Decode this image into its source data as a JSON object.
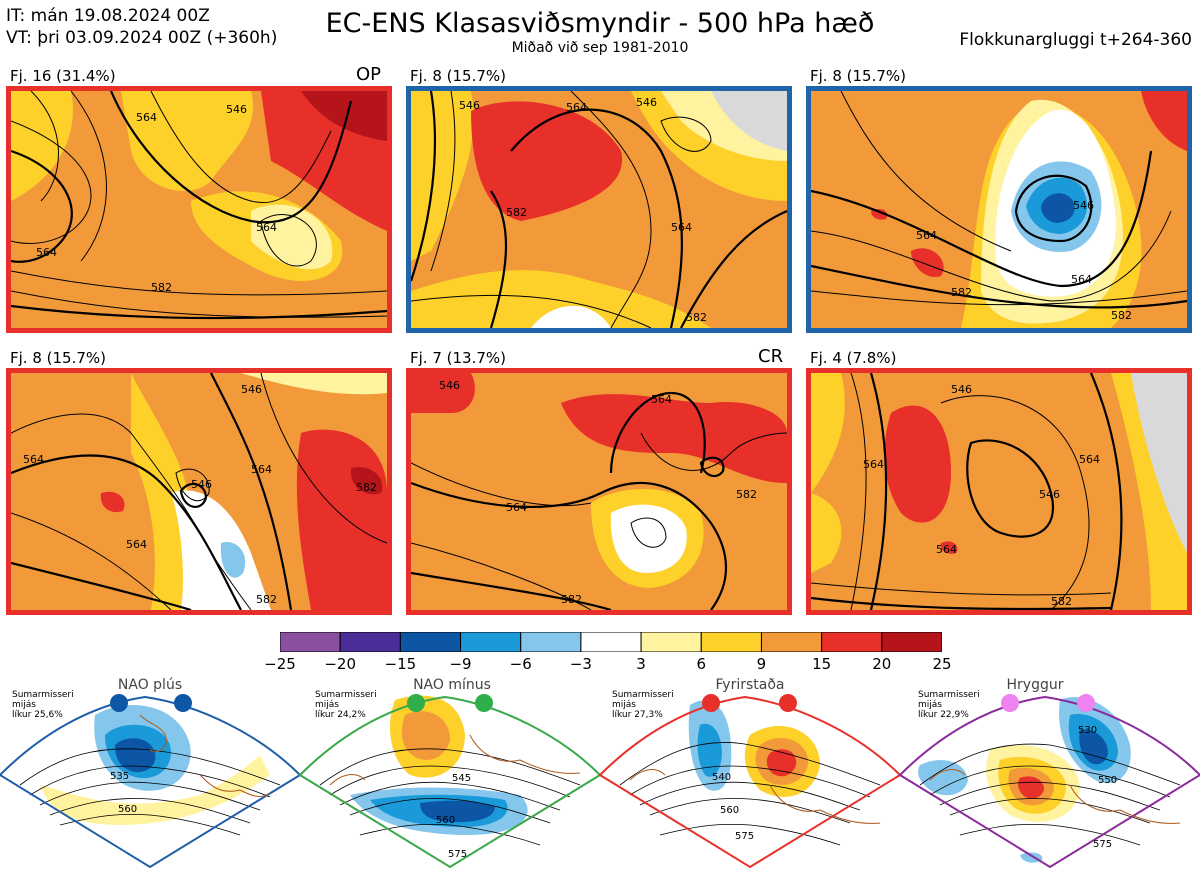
{
  "header": {
    "it": "IT: mán 19.08.2024 00Z",
    "vt": "VT: þri 03.09.2024 00Z  (+360h)",
    "title": "EC-ENS Klasasviðsmyndir - 500 hPa hæð",
    "subtitle": "Miðað við sep 1981-2010",
    "window": "Flokkunargluggi t+264-360"
  },
  "panels": [
    {
      "label": "Fj. 16 (31.4%)",
      "tag": "OP",
      "border": "#e8302a",
      "contours": [
        "546",
        "564",
        "564",
        "564",
        "582"
      ]
    },
    {
      "label": "Fj. 8 (15.7%)",
      "tag": "",
      "border": "#1f64a8",
      "contours": [
        "546",
        "564",
        "546",
        "582",
        "564",
        "582"
      ]
    },
    {
      "label": "Fj. 8 (15.7%)",
      "tag": "",
      "border": "#1f64a8",
      "contours": [
        "564",
        "546",
        "564",
        "582",
        "582"
      ]
    },
    {
      "label": "Fj. 8 (15.7%)",
      "tag": "",
      "border": "#e8302a",
      "contours": [
        "564",
        "546",
        "546",
        "564",
        "564",
        "582",
        "582"
      ]
    },
    {
      "label": "Fj. 7 (13.7%)",
      "tag": "CR",
      "border": "#e8302a",
      "contours": [
        "546",
        "564",
        "564",
        "582",
        "582"
      ]
    },
    {
      "label": "Fj. 4 (7.8%)",
      "tag": "",
      "border": "#e8302a",
      "contours": [
        "546",
        "564",
        "564",
        "546",
        "564",
        "582"
      ]
    }
  ],
  "colorbar": {
    "ticks": [
      "−25",
      "−20",
      "−15",
      "−9",
      "−6",
      "−3",
      "3",
      "6",
      "9",
      "15",
      "20",
      "25"
    ],
    "colors": [
      "#8b4fa0",
      "#4b2e98",
      "#0d56a6",
      "#1a9ad8",
      "#85c7ec",
      "#ffffff",
      "#fff3a0",
      "#fdd12a",
      "#f29a3a",
      "#e8302a",
      "#b5141b"
    ]
  },
  "regimes": [
    {
      "name": "NAO plús",
      "note": [
        "Sumarmisseri",
        "mijás",
        "líkur 25,6%"
      ],
      "dot": "#0d56a6",
      "border": "#1f5ea8",
      "contours": [
        "535",
        "560"
      ]
    },
    {
      "name": "NAO mínus",
      "note": [
        "Sumarmisseri",
        "mijás",
        "líkur 24,2%"
      ],
      "dot": "#2fae4a",
      "border": "#3aa84a",
      "contours": [
        "545",
        "560",
        "575"
      ]
    },
    {
      "name": "Fyrirstaða",
      "note": [
        "Sumarmisseri",
        "mijás",
        "líkur 27,3%"
      ],
      "dot": "#e8302a",
      "border": "#e8302a",
      "contours": [
        "540",
        "560",
        "575"
      ]
    },
    {
      "name": "Hryggur",
      "note": [
        "Sumarmisseri",
        "mijás",
        "líkur 22,9%"
      ],
      "dot": "#ee82ee",
      "border": "#8b2a9a",
      "contours": [
        "530",
        "550",
        "575"
      ]
    }
  ]
}
